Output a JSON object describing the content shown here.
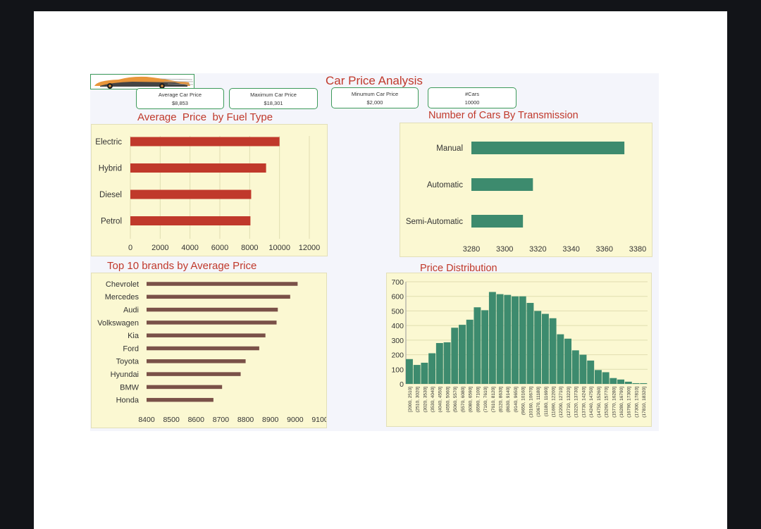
{
  "dashboard": {
    "title": "Car Price Analysis",
    "kpis": [
      {
        "label": "Average Car Price",
        "value": "$8,853"
      },
      {
        "label": "Maximum Car Price",
        "value": "$18,301"
      },
      {
        "label": "Minumum Car Price",
        "value": "$2,000"
      },
      {
        "label": "#Cars",
        "value": "10000"
      }
    ]
  },
  "colors": {
    "fuel_bar": "#c0392b",
    "transmission_bar": "#3d8b6e",
    "brand_bar": "#7a5148",
    "histogram_bar": "#3d8b6e",
    "panel_bg": "#fbf8d2",
    "title": "#c0392b"
  },
  "chart_data": [
    {
      "type": "bar",
      "orientation": "horizontal",
      "title": "Average  Price  by Fuel Type",
      "categories": [
        "Electric",
        "Hybrid",
        "Diesel",
        "Petrol"
      ],
      "values": [
        10000,
        9100,
        8100,
        8050
      ],
      "xlim": [
        0,
        12000
      ],
      "xticks": [
        0,
        2000,
        4000,
        6000,
        8000,
        10000,
        12000
      ],
      "grid": true,
      "legend": "none"
    },
    {
      "type": "bar",
      "orientation": "horizontal",
      "title": "Number of Cars By Transmission",
      "categories": [
        "Manual",
        "Automatic",
        "Semi-Automatic"
      ],
      "values": [
        3372,
        3317,
        3311
      ],
      "xlim": [
        3280,
        3380
      ],
      "xticks": [
        3280,
        3300,
        3320,
        3340,
        3360,
        3380
      ],
      "grid": false,
      "legend": "none"
    },
    {
      "type": "bar",
      "orientation": "horizontal",
      "title": "Top 10 brands by Average Price",
      "categories": [
        "Chevrolet",
        "Mercedes",
        "Audi",
        "Volkswagen",
        "Kia",
        "Ford",
        "Toyota",
        "Hyundai",
        "BMW",
        "Honda"
      ],
      "values": [
        9010,
        8980,
        8930,
        8925,
        8880,
        8855,
        8800,
        8780,
        8705,
        8670
      ],
      "xlim": [
        8400,
        9100
      ],
      "xticks": [
        8400,
        8500,
        8600,
        8700,
        8800,
        8900,
        9000,
        9100
      ],
      "grid": false,
      "legend": "none"
    },
    {
      "type": "bar",
      "title": "Price Distribution",
      "categories": [
        "[2000, 2510]",
        "(2510, 3020]",
        "(3020, 3530]",
        "(3530, 4040]",
        "(4040, 4550]",
        "(4550, 5060]",
        "(5060, 5570]",
        "(5570, 6080]",
        "(6080, 6590]",
        "(6590, 7100]",
        "(7100, 7610]",
        "(7610, 8120]",
        "(8120, 8630]",
        "(8630, 9140]",
        "(9140, 9650]",
        "(9650, 10160]",
        "(10160, 10670]",
        "(10670, 11180]",
        "(11180, 11690]",
        "(11690, 12200]",
        "(12200, 12710]",
        "(12710, 13220]",
        "(13220, 13730]",
        "(13730, 14240]",
        "(14240, 14750]",
        "(14750, 15260]",
        "(15260, 15770]",
        "(15770, 16280]",
        "(16280, 16790]",
        "(16790, 17300]",
        "(17300, 17810]",
        "(17810, 18320]"
      ],
      "values": [
        170,
        130,
        145,
        210,
        280,
        285,
        385,
        405,
        440,
        525,
        505,
        630,
        615,
        610,
        600,
        600,
        555,
        500,
        480,
        450,
        340,
        310,
        230,
        200,
        160,
        95,
        80,
        40,
        30,
        15,
        5,
        5
      ],
      "ylim": [
        0,
        700
      ],
      "yticks": [
        0,
        100,
        200,
        300,
        400,
        500,
        600,
        700
      ],
      "grid": true,
      "legend": "none"
    }
  ]
}
